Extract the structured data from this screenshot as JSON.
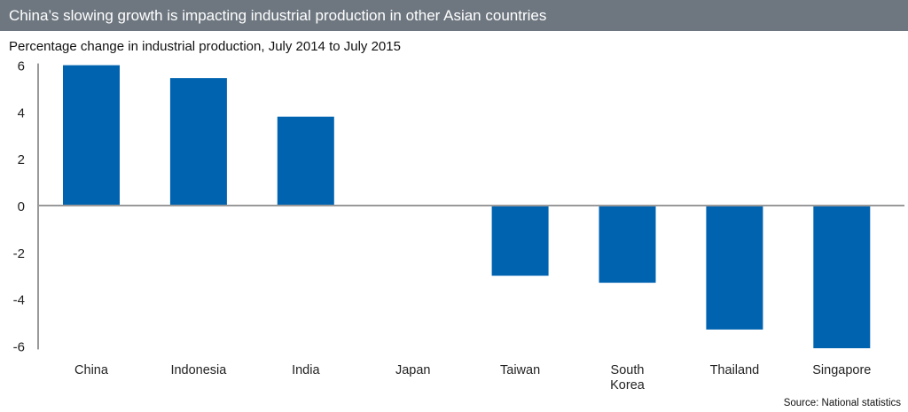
{
  "title": "China’s slowing growth is impacting industrial production in other Asian countries",
  "source": "Source: National statistics",
  "colors": {
    "bar": "#0063b0",
    "title_bar": "#6e7780",
    "axis": "#999999"
  },
  "chart_data": {
    "type": "bar",
    "title": "China’s slowing growth is impacting industrial production in other Asian countries",
    "subtitle": "Percentage change in industrial production, July 2014 to July 2015",
    "xlabel": "",
    "ylabel": "",
    "categories": [
      [
        "China"
      ],
      [
        "Indonesia"
      ],
      [
        "India"
      ],
      [
        "Japan"
      ],
      [
        "Taiwan"
      ],
      [
        "South",
        "Korea"
      ],
      [
        "Thailand"
      ],
      [
        "Singapore"
      ]
    ],
    "values": [
      6.0,
      5.45,
      3.8,
      0.0,
      -3.0,
      -3.3,
      -5.3,
      -6.1
    ],
    "ylim": [
      -6,
      6
    ],
    "yticks": [
      "6",
      "4",
      "2",
      "0",
      "-2",
      "-4",
      "-6"
    ],
    "grid": false,
    "legend": "none"
  }
}
